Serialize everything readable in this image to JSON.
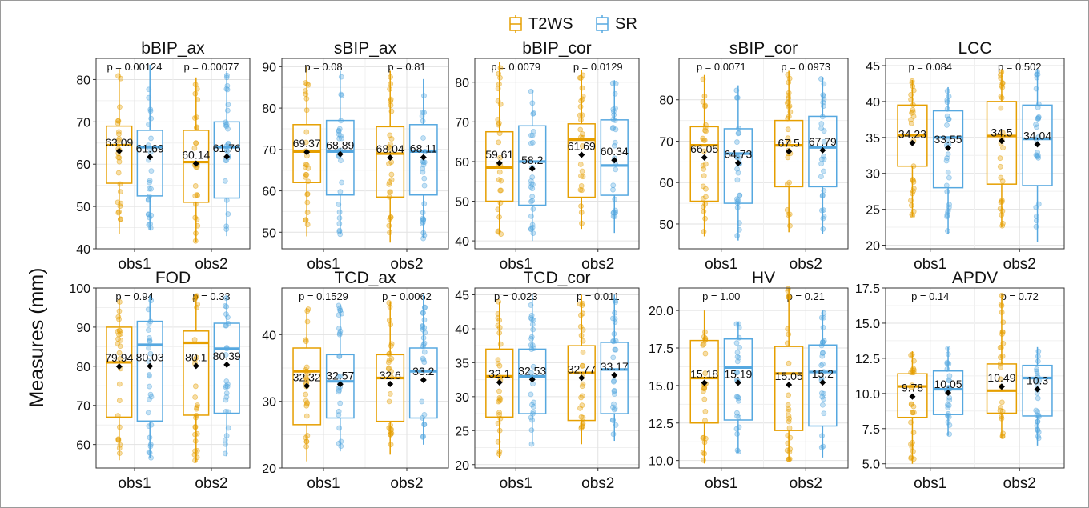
{
  "legend": {
    "items": [
      {
        "label": "T2WS",
        "color": "#E69F00"
      },
      {
        "label": "SR",
        "color": "#56A8E0"
      }
    ]
  },
  "ylabel": "Measures (mm)",
  "chart_data": [
    {
      "type": "box",
      "title": "bBIP_ax",
      "categories": [
        "obs1",
        "obs2"
      ],
      "ylim": [
        40,
        85
      ],
      "yticks": [
        40,
        50,
        60,
        70,
        80
      ],
      "decimals": 0,
      "pvalues": [
        "p = 0.00124",
        "p = 0.00077"
      ],
      "series": [
        {
          "name": "T2WS",
          "boxes": [
            {
              "min": 43.5,
              "q1": 55.5,
              "median": 64.5,
              "q3": 69,
              "max": 82.5,
              "mean": 63.09,
              "mean_label": "63.09"
            },
            {
              "min": 41.5,
              "q1": 51,
              "median": 60.5,
              "q3": 68,
              "max": 80.5,
              "mean": 60.14,
              "mean_label": "60.14"
            }
          ]
        },
        {
          "name": "SR",
          "boxes": [
            {
              "min": 44.5,
              "q1": 52.5,
              "median": 64,
              "q3": 68,
              "max": 83.5,
              "mean": 61.69,
              "mean_label": "61.69"
            },
            {
              "min": 43,
              "q1": 52,
              "median": 64,
              "q3": 70,
              "max": 82,
              "mean": 61.76,
              "mean_label": "61.76"
            }
          ]
        }
      ]
    },
    {
      "type": "box",
      "title": "sBIP_ax",
      "categories": [
        "obs1",
        "obs2"
      ],
      "ylim": [
        46,
        92
      ],
      "yticks": [
        50,
        60,
        70,
        80,
        90
      ],
      "decimals": 0,
      "pvalues": [
        "p = 0.08",
        "p = 0.81"
      ],
      "series": [
        {
          "name": "T2WS",
          "boxes": [
            {
              "min": 49,
              "q1": 62,
              "median": 69.5,
              "q3": 76,
              "max": 90,
              "mean": 69.37,
              "mean_label": "69.37"
            },
            {
              "min": 47.5,
              "q1": 58.5,
              "median": 69,
              "q3": 75.5,
              "max": 89,
              "mean": 68.04,
              "mean_label": "68.04"
            }
          ]
        },
        {
          "name": "SR",
          "boxes": [
            {
              "min": 49.5,
              "q1": 59,
              "median": 69.5,
              "q3": 77,
              "max": 89,
              "mean": 68.89,
              "mean_label": "68.89"
            },
            {
              "min": 48.5,
              "q1": 59,
              "median": 69.5,
              "q3": 76,
              "max": 87,
              "mean": 68.11,
              "mean_label": "68.11"
            }
          ]
        }
      ]
    },
    {
      "type": "box",
      "title": "bBIP_cor",
      "categories": [
        "obs1",
        "obs2"
      ],
      "ylim": [
        38,
        86
      ],
      "yticks": [
        40,
        50,
        60,
        70,
        80
      ],
      "decimals": 0,
      "pvalues": [
        "p = 0.0079",
        "p = 0.0129"
      ],
      "series": [
        {
          "name": "T2WS",
          "boxes": [
            {
              "min": 41.5,
              "q1": 50,
              "median": 58.5,
              "q3": 67.5,
              "max": 85,
              "mean": 59.61,
              "mean_label": "59.61"
            },
            {
              "min": 43,
              "q1": 51,
              "median": 65.5,
              "q3": 69.5,
              "max": 83,
              "mean": 61.69,
              "mean_label": "61.69"
            }
          ]
        },
        {
          "name": "SR",
          "boxes": [
            {
              "min": 40,
              "q1": 49,
              "median": 60,
              "q3": 69,
              "max": 78,
              "mean": 58.2,
              "mean_label": "58.2"
            },
            {
              "min": 42,
              "q1": 51.5,
              "median": 59,
              "q3": 70.5,
              "max": 80.5,
              "mean": 60.34,
              "mean_label": "60.34"
            }
          ]
        }
      ]
    },
    {
      "type": "box",
      "title": "sBIP_cor",
      "categories": [
        "obs1",
        "obs2"
      ],
      "ylim": [
        44,
        90
      ],
      "yticks": [
        50,
        60,
        70,
        80
      ],
      "decimals": 0,
      "pvalues": [
        "p = 0.0071",
        "p = 0.0973"
      ],
      "series": [
        {
          "name": "T2WS",
          "boxes": [
            {
              "min": 47,
              "q1": 55.5,
              "median": 69,
              "q3": 73.5,
              "max": 86,
              "mean": 66.05,
              "mean_label": "66.05"
            },
            {
              "min": 48,
              "q1": 59,
              "median": 69,
              "q3": 75,
              "max": 87,
              "mean": 67.5,
              "mean_label": "67.5"
            }
          ]
        },
        {
          "name": "SR",
          "boxes": [
            {
              "min": 46,
              "q1": 55,
              "median": 67,
              "q3": 73,
              "max": 83.5,
              "mean": 64.73,
              "mean_label": "64.73"
            },
            {
              "min": 47.5,
              "q1": 59,
              "median": 68.5,
              "q3": 76,
              "max": 85.5,
              "mean": 67.79,
              "mean_label": "67.79"
            }
          ]
        }
      ]
    },
    {
      "type": "box",
      "title": "LCC",
      "categories": [
        "obs1",
        "obs2"
      ],
      "ylim": [
        19.5,
        46
      ],
      "yticks": [
        20,
        25,
        30,
        35,
        40,
        45
      ],
      "decimals": 0,
      "pvalues": [
        "p = 0.084",
        "p = 0.502"
      ],
      "series": [
        {
          "name": "T2WS",
          "boxes": [
            {
              "min": 24,
              "q1": 31,
              "median": 35.3,
              "q3": 39.5,
              "max": 43,
              "mean": 34.23,
              "mean_label": "34.23"
            },
            {
              "min": 22.5,
              "q1": 28.5,
              "median": 35.2,
              "q3": 40,
              "max": 44.5,
              "mean": 34.5,
              "mean_label": "34.5"
            }
          ]
        },
        {
          "name": "SR",
          "boxes": [
            {
              "min": 21.5,
              "q1": 28,
              "median": 35,
              "q3": 38.7,
              "max": 42,
              "mean": 33.55,
              "mean_label": "33.55"
            },
            {
              "min": 20.5,
              "q1": 28.3,
              "median": 34.8,
              "q3": 39.5,
              "max": 44.5,
              "mean": 34.04,
              "mean_label": "34.04"
            }
          ]
        }
      ]
    },
    {
      "type": "box",
      "title": "FOD",
      "categories": [
        "obs1",
        "obs2"
      ],
      "ylim": [
        54,
        100
      ],
      "yticks": [
        60,
        70,
        80,
        90,
        100
      ],
      "decimals": 0,
      "pvalues": [
        "p = 0.94",
        "p = 0.33"
      ],
      "series": [
        {
          "name": "T2WS",
          "boxes": [
            {
              "min": 56,
              "q1": 67,
              "median": 81,
              "q3": 90,
              "max": 97,
              "mean": 79.94,
              "mean_label": "79.94"
            },
            {
              "min": 55.5,
              "q1": 67.5,
              "median": 86,
              "q3": 89,
              "max": 98.5,
              "mean": 80.1,
              "mean_label": "80.1"
            }
          ]
        },
        {
          "name": "SR",
          "boxes": [
            {
              "min": 56.5,
              "q1": 66,
              "median": 85.5,
              "q3": 91.5,
              "max": 98,
              "mean": 80.03,
              "mean_label": "80.03"
            },
            {
              "min": 57,
              "q1": 68,
              "median": 84.5,
              "q3": 91,
              "max": 98,
              "mean": 80.39,
              "mean_label": "80.39"
            }
          ]
        }
      ]
    },
    {
      "type": "box",
      "title": "TCD_ax",
      "categories": [
        "obs1",
        "obs2"
      ],
      "ylim": [
        20,
        47
      ],
      "yticks": [
        20,
        30,
        40
      ],
      "decimals": 0,
      "pvalues": [
        "p = 0.1529",
        "p = 0.0062"
      ],
      "series": [
        {
          "name": "T2WS",
          "boxes": [
            {
              "min": 21,
              "q1": 26.5,
              "median": 34.5,
              "q3": 38,
              "max": 44,
              "mean": 32.32,
              "mean_label": "32.32"
            },
            {
              "min": 22,
              "q1": 27,
              "median": 33.5,
              "q3": 37,
              "max": 45,
              "mean": 32.6,
              "mean_label": "32.6"
            }
          ]
        },
        {
          "name": "SR",
          "boxes": [
            {
              "min": 22.5,
              "q1": 27.5,
              "median": 33,
              "q3": 37,
              "max": 44.5,
              "mean": 32.57,
              "mean_label": "32.57"
            },
            {
              "min": 23.5,
              "q1": 27.5,
              "median": 34.5,
              "q3": 38,
              "max": 46,
              "mean": 33.2,
              "mean_label": "33.2"
            }
          ]
        }
      ]
    },
    {
      "type": "box",
      "title": "TCD_cor",
      "categories": [
        "obs1",
        "obs2"
      ],
      "ylim": [
        19.5,
        46
      ],
      "yticks": [
        20,
        25,
        30,
        35,
        40,
        45
      ],
      "decimals": 0,
      "pvalues": [
        "p = 0.023",
        "p = 0.011"
      ],
      "series": [
        {
          "name": "T2WS",
          "boxes": [
            {
              "min": 21,
              "q1": 27,
              "median": 33,
              "q3": 37,
              "max": 44,
              "mean": 32.1,
              "mean_label": "32.1"
            },
            {
              "min": 23,
              "q1": 26.5,
              "median": 33.5,
              "q3": 37.5,
              "max": 45,
              "mean": 32.77,
              "mean_label": "32.77"
            }
          ]
        },
        {
          "name": "SR",
          "boxes": [
            {
              "min": 23,
              "q1": 27.5,
              "median": 33,
              "q3": 37,
              "max": 45,
              "mean": 32.53,
              "mean_label": "32.53"
            },
            {
              "min": 23.5,
              "q1": 27.5,
              "median": 34,
              "q3": 38,
              "max": 45,
              "mean": 33.17,
              "mean_label": "33.17"
            }
          ]
        }
      ]
    },
    {
      "type": "box",
      "title": "HV",
      "categories": [
        "obs1",
        "obs2"
      ],
      "ylim": [
        9.5,
        21.5
      ],
      "yticks": [
        10,
        12.5,
        15,
        17.5,
        20
      ],
      "decimals": 1,
      "pvalues": [
        "p = 1.00",
        "p = 0.21"
      ],
      "series": [
        {
          "name": "T2WS",
          "boxes": [
            {
              "min": 9.8,
              "q1": 12.5,
              "median": 15.5,
              "q3": 18,
              "max": 20,
              "mean": 15.18,
              "mean_label": "15.18"
            },
            {
              "min": 10,
              "q1": 12,
              "median": 15.8,
              "q3": 17.6,
              "max": 21.5,
              "mean": 15.05,
              "mean_label": "15.05"
            }
          ]
        },
        {
          "name": "SR",
          "boxes": [
            {
              "min": 10.5,
              "q1": 12.7,
              "median": 16.2,
              "q3": 18.1,
              "max": 19.2,
              "mean": 15.19,
              "mean_label": "15.19"
            },
            {
              "min": 10.2,
              "q1": 12.3,
              "median": 15.9,
              "q3": 17.7,
              "max": 20,
              "mean": 15.2,
              "mean_label": "15.2"
            }
          ]
        }
      ]
    },
    {
      "type": "box",
      "title": "APDV",
      "categories": [
        "obs1",
        "obs2"
      ],
      "ylim": [
        4.7,
        17.5
      ],
      "yticks": [
        5,
        7.5,
        10,
        12.5,
        15,
        17.5
      ],
      "decimals": 1,
      "pvalues": [
        "p = 0.14",
        "p = 0.72"
      ],
      "series": [
        {
          "name": "T2WS",
          "boxes": [
            {
              "min": 5,
              "q1": 8.3,
              "median": 10.5,
              "q3": 11.4,
              "max": 13,
              "mean": 9.78,
              "mean_label": "9.78"
            },
            {
              "min": 6.8,
              "q1": 8.6,
              "median": 10.2,
              "q3": 12.1,
              "max": 17,
              "mean": 10.49,
              "mean_label": "10.49"
            }
          ]
        },
        {
          "name": "SR",
          "boxes": [
            {
              "min": 7,
              "q1": 8.5,
              "median": 10.3,
              "q3": 11.6,
              "max": 13.3,
              "mean": 10.05,
              "mean_label": "10.05"
            },
            {
              "min": 6.3,
              "q1": 8.4,
              "median": 11.1,
              "q3": 12,
              "max": 13.3,
              "mean": 10.3,
              "mean_label": "10.3"
            }
          ]
        }
      ]
    }
  ]
}
